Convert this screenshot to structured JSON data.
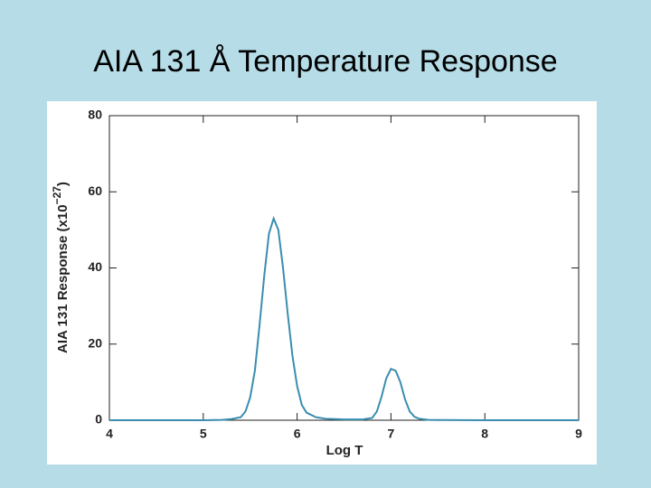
{
  "chart_data": {
    "type": "line",
    "title": "AIA 131 Å Temperature Response",
    "x_label": "Log T",
    "y_label": {
      "text": "AIA 131 Response (x10",
      "superscript": "−27",
      "closing": ")"
    },
    "x": [
      4.0,
      4.5,
      5.0,
      5.2,
      5.3,
      5.4,
      5.45,
      5.5,
      5.55,
      5.6,
      5.65,
      5.7,
      5.75,
      5.8,
      5.85,
      5.9,
      5.95,
      6.0,
      6.05,
      6.1,
      6.2,
      6.3,
      6.5,
      6.7,
      6.8,
      6.85,
      6.9,
      6.95,
      7.0,
      7.05,
      7.1,
      7.15,
      7.2,
      7.25,
      7.3,
      7.4,
      7.5,
      8.0,
      8.5,
      9.0
    ],
    "series": [
      {
        "name": "AIA 131",
        "color": "#3a8db0",
        "values": [
          0,
          0,
          0,
          0.1,
          0.3,
          0.8,
          2.3,
          6,
          13,
          25,
          38,
          49,
          53,
          50,
          40,
          28,
          17,
          9,
          4,
          2,
          0.8,
          0.4,
          0.2,
          0.2,
          0.6,
          2.3,
          6.2,
          11,
          13.5,
          13,
          10,
          5.5,
          2.3,
          0.9,
          0.4,
          0.1,
          0.05,
          0,
          0,
          0
        ]
      }
    ],
    "xlim": [
      4,
      9
    ],
    "ylim": [
      0,
      80
    ],
    "xticks": [
      4,
      5,
      6,
      7,
      8,
      9
    ],
    "yticks": [
      0,
      20,
      40,
      60,
      80
    ]
  }
}
